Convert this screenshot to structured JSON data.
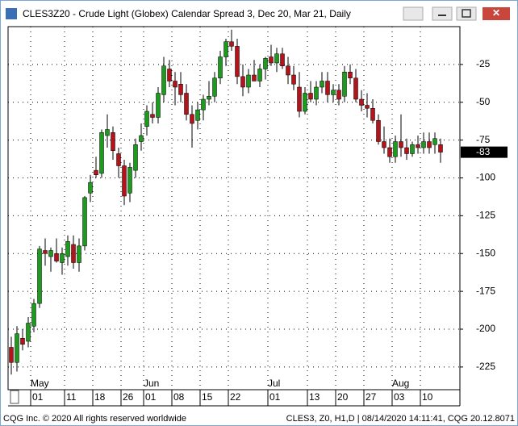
{
  "chart_data": {
    "type": "candlestick",
    "title": "CLES3Z20 - Crude Light (Globex) Calendar Spread 3, Dec 20, Mar 21, Daily",
    "footer_left": "CQG Inc. © 2020 All rights reserved worldwide",
    "footer_right": "CLES3, Z0, H1,D | 08/14/2020 14:11:41, CQG 20.12.8071",
    "categories": [
      null,
      null,
      null,
      null,
      "01",
      null,
      null,
      null,
      null,
      null,
      "11",
      null,
      null,
      null,
      null,
      "18",
      null,
      null,
      null,
      null,
      "26",
      null,
      null,
      null,
      "01",
      null,
      null,
      null,
      null,
      "08",
      null,
      null,
      null,
      null,
      "15",
      null,
      null,
      null,
      null,
      "22",
      null,
      null,
      null,
      null,
      null,
      null,
      "01",
      null,
      null,
      null,
      null,
      null,
      null,
      "13",
      null,
      null,
      null,
      null,
      "20",
      null,
      null,
      null,
      null,
      "27",
      null,
      null,
      null,
      null,
      "03",
      null,
      null,
      null,
      null,
      "10",
      null,
      null,
      null
    ],
    "months": [
      null,
      null,
      null,
      null,
      "May",
      null,
      null,
      null,
      null,
      null,
      null,
      null,
      null,
      null,
      null,
      null,
      null,
      null,
      null,
      null,
      null,
      null,
      null,
      null,
      "Jun",
      null,
      null,
      null,
      null,
      null,
      null,
      null,
      null,
      null,
      null,
      null,
      null,
      null,
      null,
      null,
      null,
      null,
      null,
      null,
      null,
      null,
      "Jul",
      null,
      null,
      null,
      null,
      null,
      null,
      null,
      null,
      null,
      null,
      null,
      null,
      null,
      null,
      null,
      null,
      null,
      null,
      null,
      null,
      null,
      "Aug",
      null,
      null,
      null,
      null,
      null,
      null,
      null,
      null
    ],
    "open": [
      -212,
      -222,
      -206,
      -208,
      -198,
      -183,
      -148,
      -152,
      -150,
      -156,
      -152,
      -144,
      -156,
      -145,
      -110,
      -95,
      -97,
      -72,
      -70,
      -84,
      -92,
      -110,
      -95,
      -76,
      -66,
      -58,
      -60,
      -45,
      -28,
      -36,
      -38,
      -44,
      -58,
      -62,
      -55,
      -48,
      -46,
      -34,
      -20,
      -10,
      -13,
      -33,
      -40,
      -32,
      -36,
      -28,
      -20,
      -24,
      -18,
      -26,
      -32,
      -40,
      -56,
      -44,
      -48,
      -40,
      -36,
      -45,
      -42,
      -46,
      -30,
      -34,
      -48,
      -52,
      -54,
      -62,
      -76,
      -80,
      -86,
      -76,
      -80,
      -84,
      -78,
      -80,
      -76,
      -78,
      -78
    ],
    "high": [
      -205,
      -198,
      -200,
      -192,
      -180,
      -145,
      -140,
      -146,
      -140,
      -146,
      -138,
      -138,
      -140,
      -112,
      -98,
      -86,
      -68,
      -58,
      -66,
      -80,
      -88,
      -90,
      -74,
      -64,
      -52,
      -50,
      -40,
      -20,
      -22,
      -30,
      -30,
      -38,
      -52,
      -50,
      -45,
      -36,
      -30,
      -16,
      -8,
      -2,
      -8,
      -25,
      -28,
      -22,
      -25,
      -20,
      -12,
      -14,
      -14,
      -20,
      -26,
      -30,
      -40,
      -36,
      -36,
      -30,
      -30,
      -38,
      -38,
      -26,
      -25,
      -28,
      -42,
      -44,
      -48,
      -58,
      -66,
      -74,
      -72,
      -58,
      -74,
      -76,
      -72,
      -70,
      -70,
      -70,
      -74
    ],
    "low": [
      -230,
      -228,
      -214,
      -212,
      -202,
      -186,
      -158,
      -162,
      -156,
      -164,
      -158,
      -160,
      -162,
      -148,
      -116,
      -100,
      -100,
      -80,
      -88,
      -100,
      -118,
      -116,
      -100,
      -82,
      -72,
      -64,
      -64,
      -50,
      -40,
      -52,
      -50,
      -62,
      -80,
      -68,
      -62,
      -52,
      -50,
      -38,
      -26,
      -16,
      -38,
      -46,
      -44,
      -36,
      -40,
      -35,
      -26,
      -30,
      -28,
      -38,
      -42,
      -60,
      -58,
      -50,
      -52,
      -44,
      -50,
      -50,
      -52,
      -50,
      -38,
      -50,
      -56,
      -60,
      -64,
      -78,
      -84,
      -90,
      -90,
      -86,
      -88,
      -86,
      -84,
      -84,
      -84,
      -84,
      -90
    ],
    "close": [
      -222,
      -203,
      -210,
      -196,
      -183,
      -147,
      -150,
      -148,
      -155,
      -150,
      -142,
      -156,
      -145,
      -113,
      -103,
      -98,
      -70,
      -68,
      -82,
      -92,
      -112,
      -93,
      -78,
      -72,
      -56,
      -60,
      -44,
      -26,
      -36,
      -40,
      -45,
      -58,
      -64,
      -55,
      -48,
      -46,
      -34,
      -20,
      -10,
      -13,
      -33,
      -40,
      -32,
      -36,
      -28,
      -21,
      -24,
      -18,
      -26,
      -32,
      -38,
      -56,
      -44,
      -48,
      -40,
      -36,
      -45,
      -42,
      -48,
      -30,
      -34,
      -48,
      -52,
      -54,
      -62,
      -76,
      -80,
      -86,
      -76,
      -80,
      -84,
      -78,
      -80,
      -76,
      -80,
      -74,
      -83
    ],
    "up_color": "#1e9a1e",
    "down_color": "#b3141c",
    "ylim": [
      -240,
      0
    ],
    "yticks": [
      -25,
      -50,
      -75,
      -100,
      -125,
      -150,
      -175,
      -200,
      -225
    ],
    "grid": true
  }
}
